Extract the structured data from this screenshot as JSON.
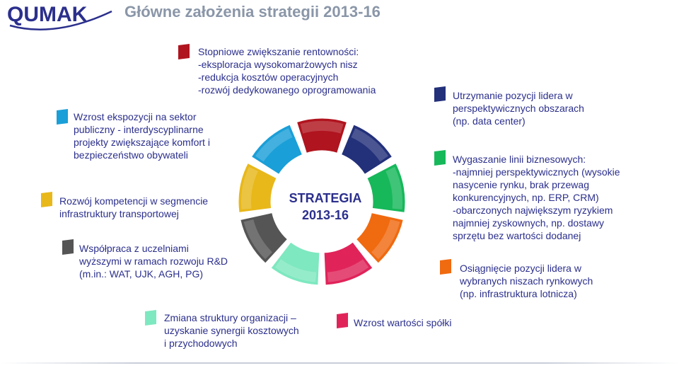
{
  "logo_text": "QUMAK",
  "title": "Główne założenia strategii 2013-16",
  "center": {
    "line1": "STRATEGIA",
    "line2": "2013-16"
  },
  "items": {
    "top": "Stopniowe zwiększanie rentowności:\n    -eksploracja wysokomarżowych nisz\n    -redukcja kosztów operacyjnych\n    -rozwój  dedykowanego oprogramowania",
    "public_sector": "Wzrost ekspozycji na sektor\npubliczny - interdyscyplinarne\nprojekty zwiększające komfort i\nbezpieczeństwo obywateli",
    "transport": "Rozwój kompetencji w segmencie\ninfrastruktury transportowej",
    "universities": "Współpraca z uczelniami\nwyższymi w ramach rozwoju R&D\n(m.in.: WAT, UJK, AGH, PG)",
    "org_change": "Zmiana struktury organizacji –\nuzyskanie synergii kosztowych\ni przychodowych",
    "company_value": "Wzrost wartości spółki",
    "leader": "Utrzymanie pozycji lidera w\nperspektywicznych obszarach\n(np. data center)",
    "phase_out": "Wygaszanie linii biznesowych:\n        -najmniej perspektywicznych (wysokie\n         nasycenie rynku, brak przewag\n         konkurencyjnych, np. ERP, CRM)\n        -obarczonych największym ryzykiem\n         najmniej zyskownych, np. dostawy\n         sprzętu bez wartości dodanej",
    "niches": "Osiągnięcie pozycji lidera w\nwybranych niszach rynkowych\n(np. infrastruktura lotnicza)"
  },
  "colors": {
    "red": "#b0141e",
    "navy": "#23307a",
    "green": "#16b85a",
    "orange": "#f06a10",
    "pink": "#e0245a",
    "mint": "#7ee8c0",
    "dark_gray": "#555555",
    "gold": "#e8b81a",
    "cyan": "#1a9fd8",
    "title_gray": "#8a96a8",
    "text_blue": "#2b2f8c"
  }
}
